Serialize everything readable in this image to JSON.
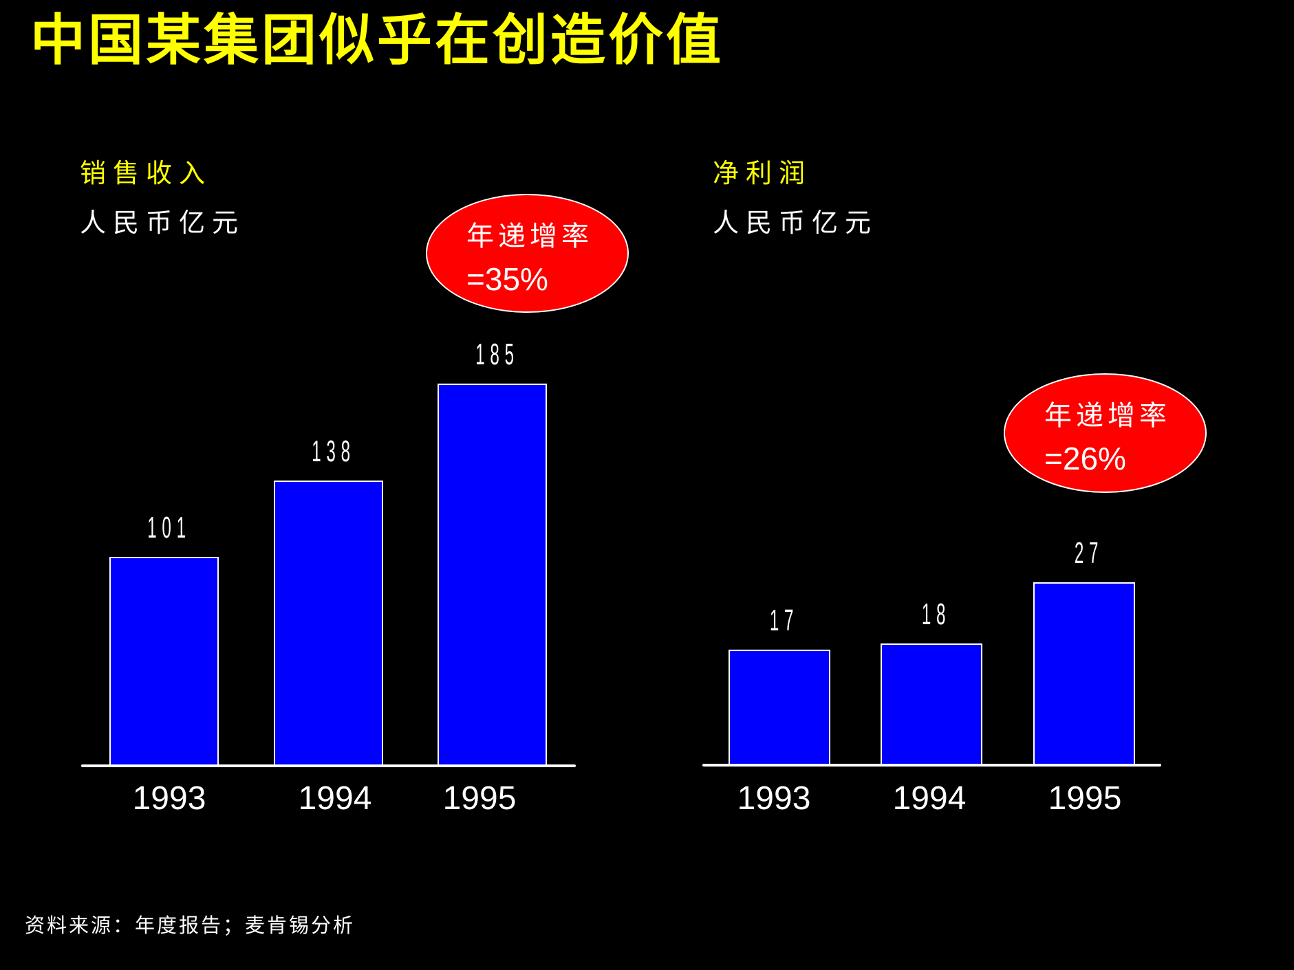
{
  "slide": {
    "title": "中国某集团似乎在创造价值",
    "footer": "资料来源：年度报告；麦肯锡分析",
    "colors": {
      "background": "#000000",
      "title": "#FFFF00",
      "metric_label": "#FFFF00",
      "bar_fill": "#0000FF",
      "bar_border": "#FFFFFF",
      "callout_fill": "#FF0000",
      "text": "#FFFFFF"
    }
  },
  "left_panel": {
    "metric": "销售收入",
    "unit": "人民币亿元",
    "callout": {
      "line1": "年递增率",
      "line2": "=35%"
    },
    "value_labels": [
      "101",
      "138",
      "185"
    ],
    "x_labels": [
      "1993",
      "1994",
      "1995"
    ]
  },
  "right_panel": {
    "metric": "净利润",
    "unit": "人民币亿元",
    "callout": {
      "line1": "年递增率",
      "line2": "=26%"
    },
    "value_labels": [
      "17",
      "18",
      "27"
    ],
    "x_labels": [
      "1993",
      "1994",
      "1995"
    ]
  },
  "chart_data": [
    {
      "type": "bar",
      "title": "销售收入",
      "ylabel": "人民币亿元",
      "xlabel": "",
      "categories": [
        "1993",
        "1994",
        "1995"
      ],
      "values": [
        101,
        138,
        185
      ],
      "annotations": [
        "年递增率 =35%"
      ],
      "grid": false,
      "legend": null
    },
    {
      "type": "bar",
      "title": "净利润",
      "ylabel": "人民币亿元",
      "xlabel": "",
      "categories": [
        "1993",
        "1994",
        "1995"
      ],
      "values": [
        17,
        18,
        27
      ],
      "annotations": [
        "年递增率 =26%"
      ],
      "grid": false,
      "legend": null
    }
  ]
}
